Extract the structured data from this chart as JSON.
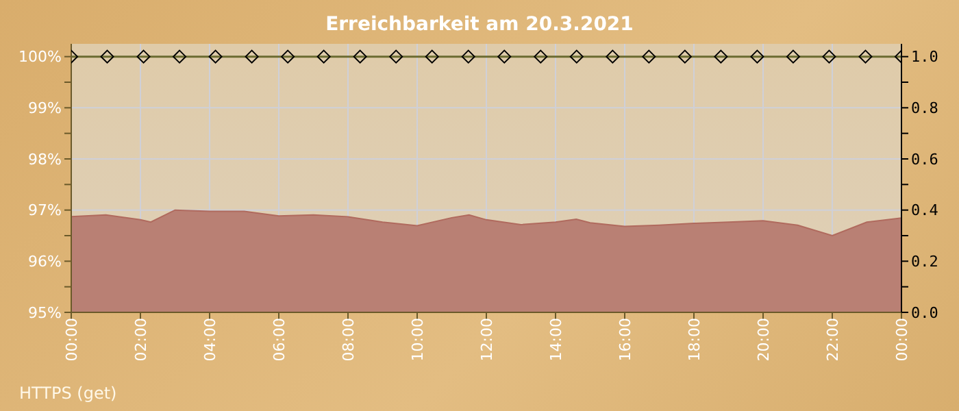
{
  "chart_data": {
    "type": "line",
    "title": "Erreichbarkeit am 20.3.2021",
    "annotations": [
      "HTTPS (get)"
    ],
    "xlim": [
      0,
      24
    ],
    "xticks": [
      {
        "value": 0,
        "label": "00:00"
      },
      {
        "value": 2,
        "label": "02:00"
      },
      {
        "value": 4,
        "label": "04:00"
      },
      {
        "value": 6,
        "label": "06:00"
      },
      {
        "value": 8,
        "label": "08:00"
      },
      {
        "value": 10,
        "label": "10:00"
      },
      {
        "value": 12,
        "label": "12:00"
      },
      {
        "value": 14,
        "label": "14:00"
      },
      {
        "value": 16,
        "label": "16:00"
      },
      {
        "value": 18,
        "label": "18:00"
      },
      {
        "value": 20,
        "label": "20:00"
      },
      {
        "value": 22,
        "label": "22:00"
      },
      {
        "value": 24,
        "label": "00:00"
      }
    ],
    "ylim": [
      95,
      100.25
    ],
    "yticks": [
      {
        "value": 95,
        "label": "95%"
      },
      {
        "value": 95.5,
        "label": null
      },
      {
        "value": 96,
        "label": "96%"
      },
      {
        "value": 96.5,
        "label": null
      },
      {
        "value": 97,
        "label": "97%"
      },
      {
        "value": 97.5,
        "label": null
      },
      {
        "value": 98,
        "label": "98%"
      },
      {
        "value": 98.5,
        "label": null
      },
      {
        "value": 99,
        "label": "99%"
      },
      {
        "value": 99.5,
        "label": null
      },
      {
        "value": 100,
        "label": "100%"
      }
    ],
    "y2lim": [
      0,
      1.05
    ],
    "y2ticks": [
      {
        "value": 0,
        "label": "0.0"
      },
      {
        "value": 0.1,
        "label": null
      },
      {
        "value": 0.2,
        "label": "0.2"
      },
      {
        "value": 0.3,
        "label": null
      },
      {
        "value": 0.4,
        "label": "0.4"
      },
      {
        "value": 0.5,
        "label": null
      },
      {
        "value": 0.6,
        "label": "0.6"
      },
      {
        "value": 0.7,
        "label": null
      },
      {
        "value": 0.8,
        "label": "0.8"
      },
      {
        "value": 0.9,
        "label": null
      },
      {
        "value": 1,
        "label": "1.0"
      }
    ],
    "grid": true,
    "legend": false,
    "series": [
      {
        "type": "area",
        "axis": "y2",
        "color": "#b98074",
        "x": [
          0,
          1,
          2,
          2.3,
          3,
          4,
          5,
          6,
          7,
          8,
          9,
          10,
          11,
          11.5,
          12,
          13,
          14,
          14.6,
          15,
          16,
          17,
          18,
          19,
          20,
          21,
          22,
          23,
          24
        ],
        "values": [
          0.374,
          0.381,
          0.362,
          0.353,
          0.4,
          0.395,
          0.395,
          0.377,
          0.381,
          0.374,
          0.353,
          0.339,
          0.37,
          0.381,
          0.362,
          0.343,
          0.353,
          0.364,
          0.35,
          0.336,
          0.341,
          0.348,
          0.353,
          0.358,
          0.341,
          0.3,
          0.353,
          0.369
        ]
      },
      {
        "color": "#6b6b30",
        "marker": "diamond",
        "line_style": "solid",
        "x": [
          0,
          1.04,
          2.09,
          3.13,
          4.17,
          5.22,
          6.26,
          7.3,
          8.35,
          9.39,
          10.43,
          11.48,
          12.52,
          13.57,
          14.61,
          15.65,
          16.7,
          17.74,
          18.78,
          19.83,
          20.87,
          21.91,
          22.96,
          24
        ],
        "values": [
          100,
          100,
          100,
          100,
          100,
          100,
          100,
          100,
          100,
          100,
          100,
          100,
          100,
          100,
          100,
          100,
          100,
          100,
          100,
          100,
          100,
          100,
          100,
          100
        ]
      }
    ]
  }
}
